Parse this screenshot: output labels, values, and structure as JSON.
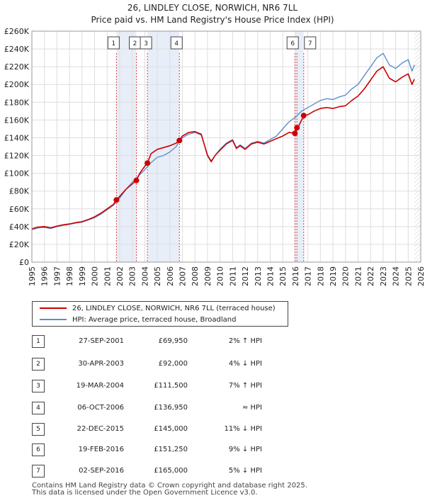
{
  "chart_data": {
    "type": "line",
    "title": "26, LINDLEY CLOSE, NORWICH, NR6 7LL",
    "subtitle": "Price paid vs. HM Land Registry's House Price Index (HPI)",
    "xlim": [
      1995,
      2026
    ],
    "ylim": [
      0,
      260000
    ],
    "x_ticks": [
      "1995",
      "1996",
      "1997",
      "1998",
      "1999",
      "2000",
      "2001",
      "2002",
      "2003",
      "2004",
      "2005",
      "2006",
      "2007",
      "2008",
      "2009",
      "2010",
      "2011",
      "2012",
      "2013",
      "2014",
      "2015",
      "2016",
      "2017",
      "2018",
      "2019",
      "2020",
      "2021",
      "2022",
      "2023",
      "2024",
      "2025",
      "2026"
    ],
    "y_ticks": [
      {
        "value": 0,
        "label": "£0"
      },
      {
        "value": 20000,
        "label": "£20K"
      },
      {
        "value": 40000,
        "label": "£40K"
      },
      {
        "value": 60000,
        "label": "£60K"
      },
      {
        "value": 80000,
        "label": "£80K"
      },
      {
        "value": 100000,
        "label": "£100K"
      },
      {
        "value": 120000,
        "label": "£120K"
      },
      {
        "value": 140000,
        "label": "£140K"
      },
      {
        "value": 160000,
        "label": "£160K"
      },
      {
        "value": 180000,
        "label": "£180K"
      },
      {
        "value": 200000,
        "label": "£200K"
      },
      {
        "value": 220000,
        "label": "£220K"
      },
      {
        "value": 240000,
        "label": "£240K"
      },
      {
        "value": 260000,
        "label": "£260K"
      }
    ],
    "grid": true,
    "series": [
      {
        "name": "26, LINDLEY CLOSE, NORWICH, NR6 7LL (terraced house)",
        "color": "#cc0000",
        "points": [
          [
            1995.0,
            37500
          ],
          [
            1995.5,
            39500
          ],
          [
            1996.0,
            40000
          ],
          [
            1996.5,
            38500
          ],
          [
            1997.0,
            40500
          ],
          [
            1997.5,
            42000
          ],
          [
            1998.0,
            43000
          ],
          [
            1998.5,
            44500
          ],
          [
            1999.0,
            45500
          ],
          [
            1999.5,
            48000
          ],
          [
            2000.0,
            51000
          ],
          [
            2000.5,
            55000
          ],
          [
            2001.0,
            60000
          ],
          [
            2001.5,
            65000
          ],
          [
            2001.74,
            69950
          ],
          [
            2002.0,
            74000
          ],
          [
            2002.5,
            82000
          ],
          [
            2003.0,
            88000
          ],
          [
            2003.33,
            92000
          ],
          [
            2003.6,
            100000
          ],
          [
            2004.0,
            108000
          ],
          [
            2004.21,
            111500
          ],
          [
            2004.5,
            122000
          ],
          [
            2005.0,
            127000
          ],
          [
            2005.5,
            129000
          ],
          [
            2006.0,
            131000
          ],
          [
            2006.5,
            134000
          ],
          [
            2006.76,
            136950
          ],
          [
            2007.0,
            142000
          ],
          [
            2007.5,
            146000
          ],
          [
            2008.0,
            147000
          ],
          [
            2008.5,
            144000
          ],
          [
            2009.0,
            120000
          ],
          [
            2009.3,
            113000
          ],
          [
            2009.6,
            120000
          ],
          [
            2010.0,
            126000
          ],
          [
            2010.5,
            133000
          ],
          [
            2011.0,
            137000
          ],
          [
            2011.3,
            128000
          ],
          [
            2011.6,
            131000
          ],
          [
            2012.0,
            127000
          ],
          [
            2012.5,
            133000
          ],
          [
            2013.0,
            135000
          ],
          [
            2013.5,
            133000
          ],
          [
            2014.0,
            136000
          ],
          [
            2014.5,
            139000
          ],
          [
            2015.0,
            142000
          ],
          [
            2015.5,
            146000
          ],
          [
            2015.97,
            145000
          ],
          [
            2016.13,
            151250
          ],
          [
            2016.3,
            154000
          ],
          [
            2016.67,
            165000
          ],
          [
            2017.0,
            166000
          ],
          [
            2017.5,
            170000
          ],
          [
            2018.0,
            173000
          ],
          [
            2018.5,
            174000
          ],
          [
            2019.0,
            173000
          ],
          [
            2019.5,
            175000
          ],
          [
            2020.0,
            176000
          ],
          [
            2020.5,
            182000
          ],
          [
            2021.0,
            187000
          ],
          [
            2021.5,
            195000
          ],
          [
            2022.0,
            205000
          ],
          [
            2022.5,
            215000
          ],
          [
            2023.0,
            220000
          ],
          [
            2023.5,
            207000
          ],
          [
            2024.0,
            203000
          ],
          [
            2024.5,
            208000
          ],
          [
            2025.0,
            212000
          ],
          [
            2025.3,
            200000
          ],
          [
            2025.5,
            206000
          ]
        ]
      },
      {
        "name": "HPI: Average price, terraced house, Broadland",
        "color": "#5b8fd1",
        "points": [
          [
            1995.0,
            36500
          ],
          [
            1995.5,
            38500
          ],
          [
            1996.0,
            39000
          ],
          [
            1996.5,
            38000
          ],
          [
            1997.0,
            40000
          ],
          [
            1997.5,
            41500
          ],
          [
            1998.0,
            42500
          ],
          [
            1998.5,
            44000
          ],
          [
            1999.0,
            45000
          ],
          [
            1999.5,
            47500
          ],
          [
            2000.0,
            50000
          ],
          [
            2000.5,
            54000
          ],
          [
            2001.0,
            59000
          ],
          [
            2001.5,
            64000
          ],
          [
            2002.0,
            72000
          ],
          [
            2002.5,
            82000
          ],
          [
            2003.0,
            90000
          ],
          [
            2003.5,
            97000
          ],
          [
            2004.0,
            104000
          ],
          [
            2004.5,
            112000
          ],
          [
            2005.0,
            118000
          ],
          [
            2005.5,
            120000
          ],
          [
            2006.0,
            124000
          ],
          [
            2006.5,
            130000
          ],
          [
            2006.76,
            136950
          ],
          [
            2007.0,
            140000
          ],
          [
            2007.5,
            144000
          ],
          [
            2008.0,
            146000
          ],
          [
            2008.5,
            143000
          ],
          [
            2009.0,
            121000
          ],
          [
            2009.3,
            114000
          ],
          [
            2009.6,
            120000
          ],
          [
            2010.0,
            127000
          ],
          [
            2010.5,
            134000
          ],
          [
            2011.0,
            138000
          ],
          [
            2011.3,
            129000
          ],
          [
            2011.6,
            132000
          ],
          [
            2012.0,
            128000
          ],
          [
            2012.5,
            134000
          ],
          [
            2013.0,
            136000
          ],
          [
            2013.5,
            134000
          ],
          [
            2014.0,
            138000
          ],
          [
            2014.5,
            142000
          ],
          [
            2015.0,
            150000
          ],
          [
            2015.5,
            158000
          ],
          [
            2016.0,
            163000
          ],
          [
            2016.5,
            170000
          ],
          [
            2017.0,
            174000
          ],
          [
            2017.5,
            178000
          ],
          [
            2018.0,
            182000
          ],
          [
            2018.5,
            184000
          ],
          [
            2019.0,
            183000
          ],
          [
            2019.5,
            186000
          ],
          [
            2020.0,
            188000
          ],
          [
            2020.5,
            195000
          ],
          [
            2021.0,
            200000
          ],
          [
            2021.5,
            210000
          ],
          [
            2022.0,
            220000
          ],
          [
            2022.5,
            230000
          ],
          [
            2023.0,
            235000
          ],
          [
            2023.5,
            222000
          ],
          [
            2024.0,
            218000
          ],
          [
            2024.5,
            224000
          ],
          [
            2025.0,
            228000
          ],
          [
            2025.3,
            215000
          ],
          [
            2025.5,
            222000
          ]
        ]
      }
    ],
    "transactions": [
      {
        "num": "1",
        "x": 2001.74,
        "value": 69950
      },
      {
        "num": "2",
        "x": 2003.33,
        "value": 92000
      },
      {
        "num": "3",
        "x": 2004.21,
        "value": 111500
      },
      {
        "num": "4",
        "x": 2006.76,
        "value": 136950
      },
      {
        "num": "5",
        "x": 2015.97,
        "value": 145000
      },
      {
        "num": "6",
        "x": 2016.13,
        "value": 151250
      },
      {
        "num": "7",
        "x": 2016.67,
        "value": 165000
      }
    ],
    "shaded_ranges": [
      [
        2001.74,
        2003.33
      ],
      [
        2004.21,
        2006.76
      ],
      [
        2015.97,
        2016.67
      ]
    ],
    "future_from": 2025.5
  },
  "legend": {
    "property_label": "26, LINDLEY CLOSE, NORWICH, NR6 7LL (terraced house)",
    "hpi_label": "HPI: Average price, terraced house, Broadland"
  },
  "transactions_table": [
    {
      "num": "1",
      "date": "27-SEP-2001",
      "price": "£69,950",
      "hpi": "2% ↑ HPI"
    },
    {
      "num": "2",
      "date": "30-APR-2003",
      "price": "£92,000",
      "hpi": "4% ↓ HPI"
    },
    {
      "num": "3",
      "date": "19-MAR-2004",
      "price": "£111,500",
      "hpi": "7% ↑ HPI"
    },
    {
      "num": "4",
      "date": "06-OCT-2006",
      "price": "£136,950",
      "hpi": "≈ HPI"
    },
    {
      "num": "5",
      "date": "22-DEC-2015",
      "price": "£145,000",
      "hpi": "11% ↓ HPI"
    },
    {
      "num": "6",
      "date": "19-FEB-2016",
      "price": "£151,250",
      "hpi": "9% ↓ HPI"
    },
    {
      "num": "7",
      "date": "02-SEP-2016",
      "price": "£165,000",
      "hpi": "5% ↓ HPI"
    }
  ],
  "footer": {
    "line1": "Contains HM Land Registry data © Crown copyright and database right 2025.",
    "line2": "This data is licensed under the Open Government Licence v3.0."
  },
  "colors": {
    "property": "#cc0000",
    "hpi": "#5b8fd1",
    "shade": "#e8eef8",
    "grid": "#dddddd"
  }
}
